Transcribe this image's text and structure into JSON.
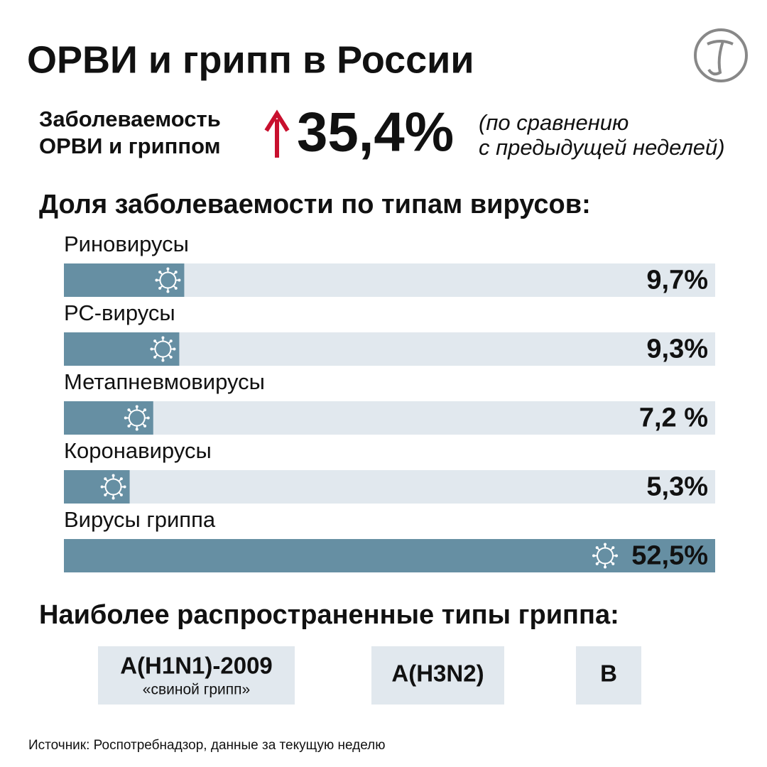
{
  "title": "ОРВИ и грипп в России",
  "headline": {
    "label": [
      "Заболеваемость",
      "ОРВИ и гриппом"
    ],
    "change": "35,4%",
    "note": [
      "(по сравнению",
      "с предыдущей неделей)"
    ]
  },
  "chart_data": {
    "type": "bar",
    "orientation": "horizontal",
    "title": "Доля заболеваемости по типам вирусов:",
    "categories": [
      "Риновирусы",
      "РС-вирусы",
      "Метапневмовирусы",
      "Коронавирусы",
      "Вирусы гриппа"
    ],
    "values": [
      9.7,
      9.3,
      7.2,
      5.3,
      52.5
    ],
    "value_labels": [
      "9,7%",
      "9,3%",
      "7,2 %",
      "5,3%",
      "52,5%"
    ],
    "color": "#668fa3",
    "track_color": "#e1e8ee",
    "xlim": [
      0,
      52.5
    ]
  },
  "flu_types": {
    "title": "Наиболее распространенные типы гриппа:",
    "items": [
      {
        "name": "A(H1N1)-2009",
        "note": "«свиной грипп»"
      },
      {
        "name": "A(H3N2)"
      },
      {
        "name": "B"
      }
    ]
  },
  "source": "Источник: Роспотребнадзор, данные за текущую неделю"
}
